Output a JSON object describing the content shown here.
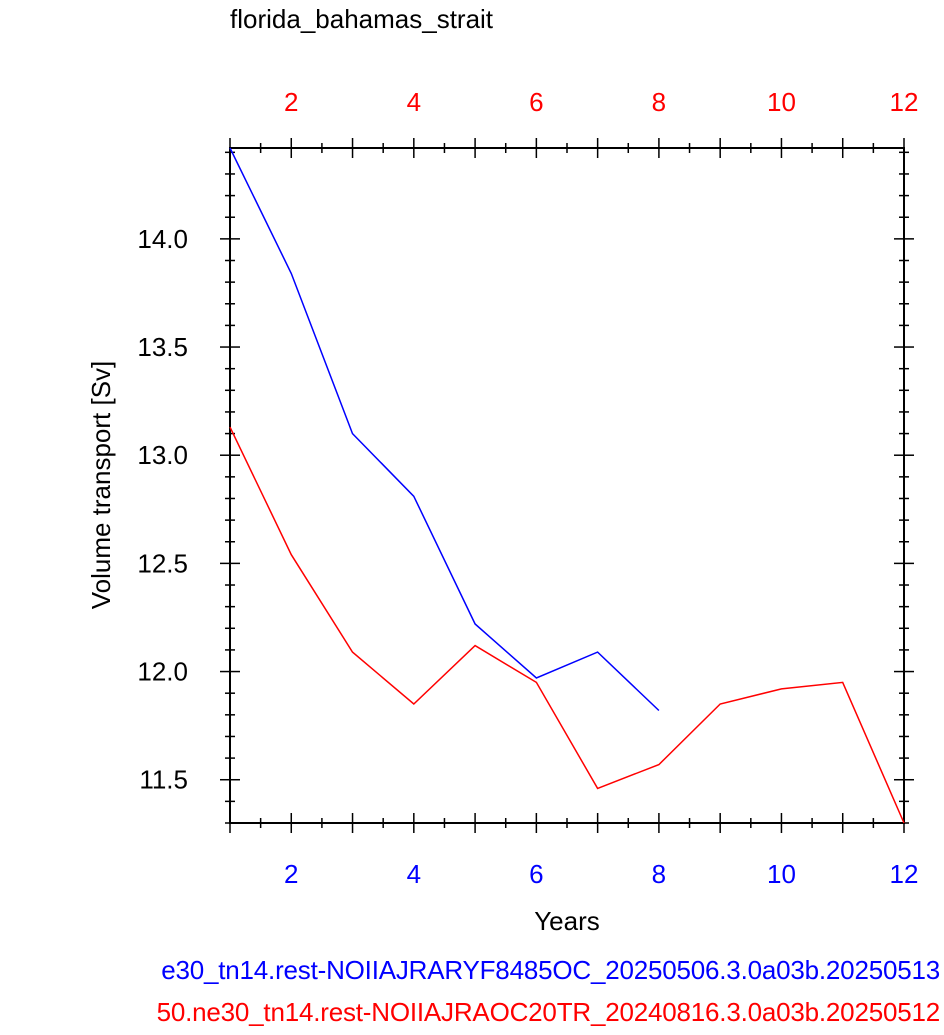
{
  "chart_data": {
    "type": "line",
    "title": "florida_bahamas_strait",
    "xlabel": "Years",
    "ylabel": "Volume transport [Sv]",
    "xlim": [
      1,
      12
    ],
    "ylim": [
      11.3,
      14.42
    ],
    "x_ticks": [
      2,
      4,
      6,
      8,
      10,
      12
    ],
    "y_ticks": [
      11.5,
      12.0,
      12.5,
      13.0,
      13.5,
      14.0
    ],
    "y_tick_labels": [
      "11.5",
      "12.0",
      "12.5",
      "13.0",
      "13.5",
      "14.0"
    ],
    "top_axis": {
      "ticks": [
        2,
        4,
        6,
        8,
        10,
        12
      ],
      "color": "#ff0000"
    },
    "bottom_axis": {
      "ticks": [
        2,
        4,
        6,
        8,
        10,
        12
      ],
      "color": "#0000ff"
    },
    "grid": false,
    "series": [
      {
        "name": "e30_tn14.rest-NOIIAJRARYF8485OC_20250506.3.0a03b.20250513",
        "color": "#0000ff",
        "x": [
          1,
          2,
          3,
          4,
          5,
          6,
          7,
          8
        ],
        "y": [
          14.42,
          13.84,
          13.1,
          12.81,
          12.22,
          11.97,
          12.09,
          11.82
        ]
      },
      {
        "name": "50.ne30_tn14.rest-NOIIAJRAOC20TR_20240816.3.0a03b.20250512",
        "color": "#ff0000",
        "x": [
          1,
          2,
          3,
          4,
          5,
          6,
          7,
          8,
          9,
          10,
          11,
          12
        ],
        "y": [
          13.13,
          12.54,
          12.09,
          11.85,
          12.12,
          11.95,
          11.46,
          11.57,
          11.85,
          11.92,
          11.95,
          11.3
        ]
      }
    ]
  }
}
